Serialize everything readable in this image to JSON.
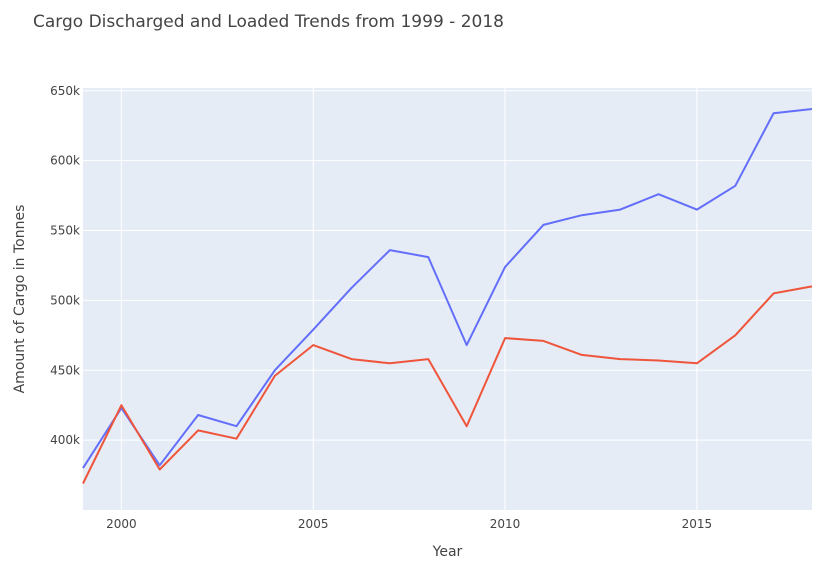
{
  "chart_data": {
    "type": "line",
    "title": "Cargo Discharged and Loaded Trends from 1999 - 2018",
    "xlabel": "Year",
    "ylabel": "Amount of Cargo in Tonnes",
    "xlim": [
      1999,
      2018
    ],
    "ylim": [
      350000,
      652000
    ],
    "x_ticks": [
      2000,
      2005,
      2010,
      2015
    ],
    "y_ticks": [
      400000,
      450000,
      500000,
      550000,
      600000,
      650000
    ],
    "y_tick_labels": [
      "400k",
      "450k",
      "500k",
      "550k",
      "600k",
      "650k"
    ],
    "grid": true,
    "background": "#e5ecf6",
    "x": [
      1999,
      2000,
      2001,
      2002,
      2003,
      2004,
      2005,
      2006,
      2007,
      2008,
      2009,
      2010,
      2011,
      2012,
      2013,
      2014,
      2015,
      2016,
      2017,
      2018
    ],
    "series": [
      {
        "color": "#636efa",
        "values": [
          380000,
          423000,
          382000,
          418000,
          410000,
          450000,
          479000,
          509000,
          536000,
          531000,
          468000,
          524000,
          554000,
          561000,
          565000,
          576000,
          565000,
          582000,
          634000,
          637000
        ]
      },
      {
        "color": "#ef553b",
        "values": [
          369000,
          425000,
          379000,
          407000,
          401000,
          446000,
          468000,
          458000,
          455000,
          458000,
          410000,
          473000,
          471000,
          461000,
          458000,
          457000,
          455000,
          475000,
          505000,
          510000
        ]
      }
    ]
  }
}
